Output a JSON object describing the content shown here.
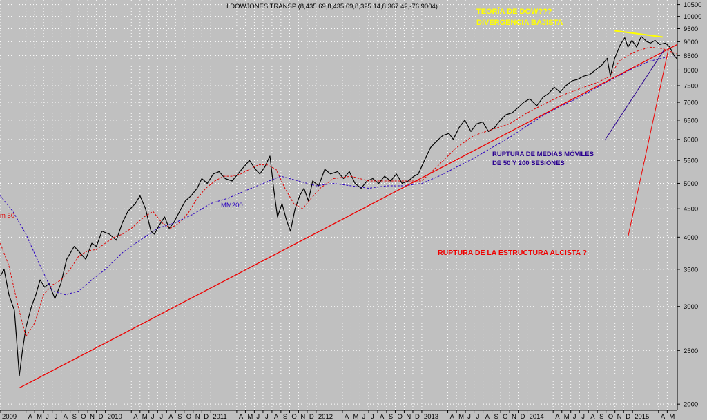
{
  "chart_data": {
    "type": "line",
    "title": "I DOWJONES TRANSP (8,435.69,8,435.69,8,325.14,8,367.42,-76.9004)",
    "y_scale": "log",
    "ylim": [
      1950,
      10700
    ],
    "y_ticks": [
      2000,
      2500,
      3000,
      3500,
      4000,
      4500,
      5000,
      5500,
      6000,
      6500,
      7000,
      7500,
      8000,
      8500,
      9000,
      9500,
      10000,
      10500
    ],
    "x_range": [
      "2009-01-01",
      "2015-06-05"
    ],
    "x_ticks": [
      {
        "date": "2009-01-01",
        "label": "2009"
      },
      {
        "date": "2009-04-01",
        "label": "A"
      },
      {
        "date": "2009-05-01",
        "label": "M"
      },
      {
        "date": "2009-06-01",
        "label": "J"
      },
      {
        "date": "2009-07-01",
        "label": "J"
      },
      {
        "date": "2009-08-01",
        "label": "A"
      },
      {
        "date": "2009-09-01",
        "label": "S"
      },
      {
        "date": "2009-10-01",
        "label": "O"
      },
      {
        "date": "2009-11-01",
        "label": "N"
      },
      {
        "date": "2009-12-01",
        "label": "D"
      },
      {
        "date": "2010-01-01",
        "label": "2010"
      },
      {
        "date": "2010-04-01",
        "label": "A"
      },
      {
        "date": "2010-05-01",
        "label": "M"
      },
      {
        "date": "2010-06-01",
        "label": "J"
      },
      {
        "date": "2010-07-01",
        "label": "J"
      },
      {
        "date": "2010-08-01",
        "label": "A"
      },
      {
        "date": "2010-09-01",
        "label": "S"
      },
      {
        "date": "2010-10-01",
        "label": "O"
      },
      {
        "date": "2010-11-01",
        "label": "N"
      },
      {
        "date": "2010-12-01",
        "label": "D"
      },
      {
        "date": "2011-01-01",
        "label": "2011"
      },
      {
        "date": "2011-04-01",
        "label": "A"
      },
      {
        "date": "2011-05-01",
        "label": "M"
      },
      {
        "date": "2011-06-01",
        "label": "J"
      },
      {
        "date": "2011-07-01",
        "label": "J"
      },
      {
        "date": "2011-08-01",
        "label": "A"
      },
      {
        "date": "2011-09-01",
        "label": "S"
      },
      {
        "date": "2011-10-01",
        "label": "O"
      },
      {
        "date": "2011-11-01",
        "label": "N"
      },
      {
        "date": "2011-12-01",
        "label": "D"
      },
      {
        "date": "2012-01-01",
        "label": "2012"
      },
      {
        "date": "2012-04-01",
        "label": "A"
      },
      {
        "date": "2012-05-01",
        "label": "M"
      },
      {
        "date": "2012-06-01",
        "label": "J"
      },
      {
        "date": "2012-07-01",
        "label": "J"
      },
      {
        "date": "2012-08-01",
        "label": "A"
      },
      {
        "date": "2012-09-01",
        "label": "S"
      },
      {
        "date": "2012-10-01",
        "label": "O"
      },
      {
        "date": "2012-11-01",
        "label": "N"
      },
      {
        "date": "2012-12-01",
        "label": "D"
      },
      {
        "date": "2013-01-01",
        "label": "2013"
      },
      {
        "date": "2013-04-01",
        "label": "A"
      },
      {
        "date": "2013-05-01",
        "label": "M"
      },
      {
        "date": "2013-06-01",
        "label": "J"
      },
      {
        "date": "2013-07-01",
        "label": "J"
      },
      {
        "date": "2013-08-01",
        "label": "A"
      },
      {
        "date": "2013-09-01",
        "label": "S"
      },
      {
        "date": "2013-10-01",
        "label": "O"
      },
      {
        "date": "2013-11-01",
        "label": "N"
      },
      {
        "date": "2013-12-01",
        "label": "D"
      },
      {
        "date": "2014-01-01",
        "label": "2014"
      },
      {
        "date": "2014-04-01",
        "label": "A"
      },
      {
        "date": "2014-05-01",
        "label": "M"
      },
      {
        "date": "2014-06-01",
        "label": "J"
      },
      {
        "date": "2014-07-01",
        "label": "J"
      },
      {
        "date": "2014-08-01",
        "label": "A"
      },
      {
        "date": "2014-09-01",
        "label": "S"
      },
      {
        "date": "2014-10-01",
        "label": "O"
      },
      {
        "date": "2014-11-01",
        "label": "N"
      },
      {
        "date": "2014-12-01",
        "label": "D"
      },
      {
        "date": "2015-01-01",
        "label": "2015"
      },
      {
        "date": "2015-04-01",
        "label": "A"
      },
      {
        "date": "2015-05-01",
        "label": "M"
      }
    ],
    "series": [
      {
        "name": "",
        "color": "#000000",
        "style": "solid",
        "x": [
          "2009-01-02",
          "2009-01-15",
          "2009-02-01",
          "2009-02-20",
          "2009-03-09",
          "2009-03-20",
          "2009-04-01",
          "2009-04-20",
          "2009-05-05",
          "2009-05-20",
          "2009-06-05",
          "2009-06-20",
          "2009-07-10",
          "2009-07-31",
          "2009-08-20",
          "2009-09-15",
          "2009-10-05",
          "2009-10-25",
          "2009-11-15",
          "2009-12-01",
          "2009-12-20",
          "2010-01-15",
          "2010-02-08",
          "2010-03-01",
          "2010-03-20",
          "2010-04-15",
          "2010-05-01",
          "2010-05-20",
          "2010-06-08",
          "2010-06-20",
          "2010-07-06",
          "2010-07-25",
          "2010-08-10",
          "2010-08-26",
          "2010-09-15",
          "2010-10-05",
          "2010-10-25",
          "2010-11-15",
          "2010-12-01",
          "2010-12-20",
          "2011-01-10",
          "2011-01-30",
          "2011-02-20",
          "2011-03-16",
          "2011-04-05",
          "2011-04-25",
          "2011-05-15",
          "2011-06-05",
          "2011-06-20",
          "2011-07-07",
          "2011-07-25",
          "2011-08-08",
          "2011-08-20",
          "2011-09-05",
          "2011-09-20",
          "2011-10-04",
          "2011-10-20",
          "2011-11-05",
          "2011-11-20",
          "2011-12-05",
          "2011-12-20",
          "2012-01-10",
          "2012-01-31",
          "2012-02-20",
          "2012-03-15",
          "2012-04-05",
          "2012-04-25",
          "2012-05-15",
          "2012-06-05",
          "2012-06-25",
          "2012-07-15",
          "2012-08-05",
          "2012-08-25",
          "2012-09-15",
          "2012-10-05",
          "2012-10-25",
          "2012-11-15",
          "2012-12-05",
          "2012-12-20",
          "2013-01-10",
          "2013-01-31",
          "2013-02-20",
          "2013-03-15",
          "2013-04-05",
          "2013-04-20",
          "2013-05-10",
          "2013-05-30",
          "2013-06-20",
          "2013-07-10",
          "2013-07-31",
          "2013-08-20",
          "2013-09-10",
          "2013-09-30",
          "2013-10-20",
          "2013-11-10",
          "2013-12-01",
          "2013-12-20",
          "2014-01-10",
          "2014-02-03",
          "2014-02-25",
          "2014-03-15",
          "2014-04-05",
          "2014-04-25",
          "2014-05-15",
          "2014-06-05",
          "2014-06-25",
          "2014-07-15",
          "2014-08-05",
          "2014-08-25",
          "2014-09-15",
          "2014-10-05",
          "2014-10-16",
          "2014-10-31",
          "2014-11-20",
          "2014-12-05",
          "2014-12-16",
          "2014-12-30",
          "2015-01-15",
          "2015-01-31",
          "2015-02-20",
          "2015-03-05",
          "2015-03-20",
          "2015-04-05",
          "2015-04-25",
          "2015-05-10",
          "2015-05-25",
          "2015-06-05"
        ],
        "y": [
          3400,
          3500,
          3150,
          2950,
          2250,
          2500,
          2750,
          3000,
          3150,
          3350,
          3250,
          3300,
          3100,
          3300,
          3650,
          3850,
          3750,
          3650,
          3900,
          3850,
          4100,
          4050,
          3950,
          4250,
          4450,
          4600,
          4750,
          4500,
          4100,
          4050,
          4200,
          4350,
          4150,
          4250,
          4450,
          4650,
          4750,
          4900,
          5100,
          5000,
          5200,
          5250,
          5100,
          5050,
          5200,
          5350,
          5500,
          5300,
          5200,
          5350,
          5600,
          4850,
          4350,
          4600,
          4300,
          4100,
          4500,
          4750,
          4900,
          4650,
          5050,
          4950,
          5300,
          5200,
          5250,
          5100,
          5250,
          5000,
          4900,
          5050,
          5100,
          5000,
          5150,
          5050,
          5200,
          5000,
          5050,
          5150,
          5200,
          5500,
          5800,
          5950,
          6100,
          6150,
          6000,
          6300,
          6500,
          6200,
          6400,
          6450,
          6200,
          6300,
          6500,
          6650,
          6700,
          6850,
          7000,
          7100,
          6900,
          7150,
          7250,
          7450,
          7300,
          7500,
          7650,
          7700,
          7800,
          7850,
          8000,
          8150,
          8400,
          7800,
          8400,
          8900,
          9150,
          8800,
          9050,
          8800,
          9200,
          9000,
          8950,
          9050,
          8900,
          8950,
          8800,
          8500,
          8367.42
        ]
      },
      {
        "name": "",
        "color": "#e00000",
        "style": "dashed",
        "x": [
          "2009-01-02",
          "2009-02-01",
          "2009-03-05",
          "2009-04-01",
          "2009-05-01",
          "2009-06-01",
          "2009-07-01",
          "2009-08-01",
          "2009-09-01",
          "2009-10-01",
          "2009-11-01",
          "2009-12-01",
          "2010-01-01",
          "2010-02-01",
          "2010-03-01",
          "2010-04-01",
          "2010-05-15",
          "2010-06-15",
          "2010-07-15",
          "2010-08-15",
          "2010-09-15",
          "2010-10-15",
          "2010-11-15",
          "2010-12-15",
          "2011-01-15",
          "2011-02-15",
          "2011-03-15",
          "2011-04-15",
          "2011-05-15",
          "2011-06-15",
          "2011-07-15",
          "2011-08-15",
          "2011-09-15",
          "2011-10-15",
          "2011-11-15",
          "2011-12-15",
          "2012-01-15",
          "2012-03-01",
          "2012-05-01",
          "2012-07-01",
          "2012-09-01",
          "2012-11-01",
          "2013-01-01",
          "2013-03-01",
          "2013-05-01",
          "2013-07-01",
          "2013-09-01",
          "2013-11-01",
          "2014-01-01",
          "2014-03-01",
          "2014-05-01",
          "2014-07-01",
          "2014-09-01",
          "2014-10-15",
          "2014-11-15",
          "2015-01-01",
          "2015-03-01",
          "2015-04-15",
          "2015-06-05"
        ],
        "y": [
          3900,
          3550,
          3000,
          2650,
          2800,
          3150,
          3280,
          3350,
          3500,
          3700,
          3780,
          3800,
          3900,
          4000,
          4050,
          4150,
          4350,
          4450,
          4250,
          4150,
          4250,
          4420,
          4700,
          4900,
          5050,
          5150,
          5150,
          5200,
          5300,
          5400,
          5400,
          5300,
          4900,
          4600,
          4500,
          4700,
          4900,
          5100,
          5150,
          5050,
          5050,
          5050,
          5050,
          5400,
          5800,
          6100,
          6250,
          6400,
          6700,
          6950,
          7200,
          7400,
          7600,
          7800,
          8300,
          8600,
          8800,
          8750,
          8550
        ]
      },
      {
        "name": "",
        "color": "#2a00c0",
        "style": "dashed",
        "x": [
          "2009-01-02",
          "2009-02-15",
          "2009-04-01",
          "2009-05-15",
          "2009-07-01",
          "2009-08-15",
          "2009-10-01",
          "2009-11-15",
          "2010-01-01",
          "2010-03-01",
          "2010-05-01",
          "2010-07-01",
          "2010-09-01",
          "2010-11-01",
          "2011-01-01",
          "2011-03-01",
          "2011-05-01",
          "2011-07-01",
          "2011-09-01",
          "2011-11-01",
          "2012-01-01",
          "2012-03-01",
          "2012-05-01",
          "2012-07-01",
          "2012-09-01",
          "2012-11-01",
          "2013-01-01",
          "2013-03-01",
          "2013-05-01",
          "2013-07-01",
          "2013-09-01",
          "2013-11-01",
          "2014-01-01",
          "2014-03-01",
          "2014-05-01",
          "2014-07-01",
          "2014-09-01",
          "2014-11-01",
          "2015-01-01",
          "2015-03-01",
          "2015-05-01",
          "2015-06-05"
        ],
        "y": [
          4750,
          4450,
          4050,
          3600,
          3200,
          3150,
          3200,
          3350,
          3500,
          3750,
          3950,
          4150,
          4250,
          4400,
          4600,
          4700,
          4850,
          5000,
          5150,
          5050,
          4950,
          5000,
          4950,
          4900,
          4950,
          4950,
          5000,
          5150,
          5350,
          5550,
          5800,
          6050,
          6350,
          6650,
          6900,
          7150,
          7450,
          7750,
          8050,
          8300,
          8450,
          8450
        ]
      },
      {
        "name": "",
        "color": "#ee0000",
        "style": "solid",
        "x": [
          "2009-03-09",
          "2015-06-05"
        ],
        "y": [
          2140,
          8900
        ]
      },
      {
        "name": "",
        "color": "#ffff00",
        "style": "solid",
        "x": [
          "2014-10-31",
          "2015-04-15"
        ],
        "y": [
          9420,
          9180
        ]
      }
    ],
    "annotations": {
      "ma50_label": "m 50",
      "ma200_label": "MM200",
      "dow_title": "TEORÍA DE DOW???",
      "dow_sub": "DIVERGENCIA BAJISTA",
      "ma_break_1": "RUPTURA DE MEDIAS MÓVILES",
      "ma_break_2": "DE 50 Y 200 SESIONES",
      "structure_break": "RUPTURA DE LA ESTRUCTURA ALCISTA ?"
    },
    "colors": {
      "background": "#c0c0c0",
      "grid": "#ffffff",
      "price": "#000000",
      "ma50": "#e00000",
      "ma200": "#2a00c0",
      "trendline": "#ee0000",
      "divergence": "#ffff00",
      "dow_text": "#ffff00",
      "ma_break_text": "#2a0090",
      "structure_text": "#ee0000"
    },
    "grid": true
  }
}
